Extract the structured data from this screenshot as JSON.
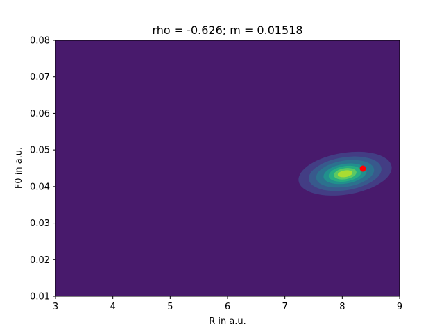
{
  "chart_data": {
    "type": "contour",
    "title": "rho = -0.626;  m = 0.01518",
    "xlabel": "R in a.u.",
    "ylabel": "F0 in a.u.",
    "xlim": [
      3,
      9
    ],
    "ylim": [
      0.01,
      0.08
    ],
    "xticks": [
      "3",
      "4",
      "5",
      "6",
      "7",
      "8",
      "9"
    ],
    "yticks": [
      "0.01",
      "0.02",
      "0.03",
      "0.04",
      "0.05",
      "0.06",
      "0.07",
      "0.08"
    ],
    "background_color": "#481a6c",
    "contour_peak": {
      "x": 8.05,
      "y": 0.0435
    },
    "contour_levels": [
      {
        "rx": 0.82,
        "ry": 0.0057,
        "color": "#433d84"
      },
      {
        "rx": 0.64,
        "ry": 0.0045,
        "color": "#38598c"
      },
      {
        "rx": 0.51,
        "ry": 0.0036,
        "color": "#2c718e"
      },
      {
        "rx": 0.38,
        "ry": 0.0027,
        "color": "#21908d"
      },
      {
        "rx": 0.29,
        "ry": 0.0021,
        "color": "#27ad81"
      },
      {
        "rx": 0.2,
        "ry": 0.0015,
        "color": "#5cc863"
      },
      {
        "rx": 0.13,
        "ry": 0.0009,
        "color": "#aadc32"
      }
    ],
    "marker": {
      "x": 8.36,
      "y": 0.0449,
      "color": "#ff0000"
    }
  }
}
